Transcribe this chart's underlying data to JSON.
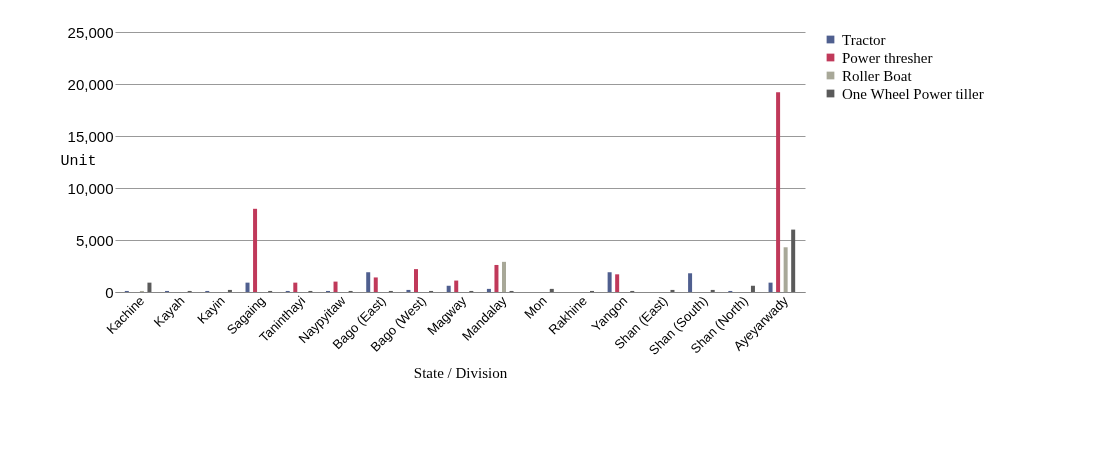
{
  "chart_data": {
    "type": "bar",
    "xlabel": "State / Division",
    "ylabel": "Unit",
    "categories": [
      "Kachine",
      "Kayah",
      "Kayin",
      "Sagaing",
      "Taninthayi",
      "Naypyitaw",
      "Bago (East)",
      "Bago (West)",
      "Magway",
      "Mandalay",
      "Mon",
      "Rakhine",
      "Yangon",
      "Shan (East)",
      "Shan (South)",
      "Shan (North)",
      "Ayeyarwady"
    ],
    "series": [
      {
        "name": "Tractor",
        "color": "#4f5f8f",
        "values": [
          100,
          100,
          100,
          900,
          100,
          100,
          1900,
          200,
          600,
          300,
          0,
          0,
          1900,
          0,
          1800,
          100,
          900
        ]
      },
      {
        "name": "Power thresher",
        "color": "#c0395a",
        "values": [
          0,
          0,
          0,
          8000,
          900,
          1000,
          1400,
          2200,
          1100,
          2600,
          0,
          0,
          1700,
          0,
          0,
          0,
          19200
        ]
      },
      {
        "name": "Roller Boat",
        "color": "#a8a898",
        "values": [
          100,
          0,
          0,
          0,
          0,
          0,
          0,
          0,
          0,
          2900,
          0,
          0,
          0,
          0,
          0,
          0,
          4300
        ]
      },
      {
        "name": "One Wheel Power tiller",
        "color": "#5a5a5a",
        "values": [
          900,
          100,
          200,
          100,
          100,
          100,
          100,
          100,
          100,
          100,
          300,
          100,
          100,
          200,
          200,
          600,
          6000
        ]
      }
    ],
    "ylim": [
      0,
      25000
    ],
    "yticks": [
      {
        "value": 0,
        "label": "0"
      },
      {
        "value": 5000,
        "label": "5,000"
      },
      {
        "value": 10000,
        "label": "10,000"
      },
      {
        "value": 15000,
        "label": "15,000"
      },
      {
        "value": 20000,
        "label": "20,000"
      },
      {
        "value": 25000,
        "label": "25,000"
      }
    ],
    "grid": "y",
    "legend": "right"
  }
}
